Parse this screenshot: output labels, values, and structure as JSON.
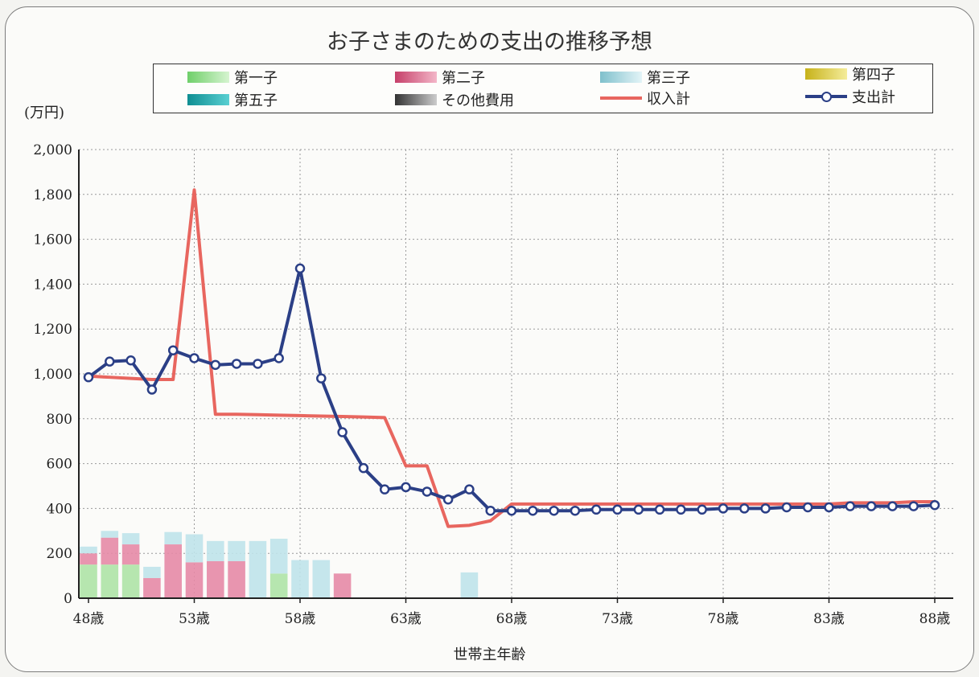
{
  "chart_data": {
    "type": "bar",
    "title": "お子さまのための支出の推移予想",
    "unit_label": "(万円)",
    "xlabel": "世帯主年齢",
    "ylim": [
      0,
      2000
    ],
    "y_ticks": [
      "0",
      "200",
      "400",
      "600",
      "800",
      "1,000",
      "1,200",
      "1,400",
      "1,600",
      "1,800",
      "2,000"
    ],
    "x_ticks": [
      "48歳",
      "53歳",
      "58歳",
      "63歳",
      "68歳",
      "73歳",
      "78歳",
      "83歳",
      "88歳"
    ],
    "ages": [
      48,
      49,
      50,
      51,
      52,
      53,
      54,
      55,
      56,
      57,
      58,
      59,
      60,
      61,
      62,
      63,
      64,
      65,
      66,
      67,
      68,
      69,
      70,
      71,
      72,
      73,
      74,
      75,
      76,
      77,
      78,
      79,
      80,
      81,
      82,
      83,
      84,
      85,
      86,
      87,
      88
    ],
    "legend_position": "top",
    "grid": true,
    "colors": {
      "child1": "#aee3a6",
      "child2": "#e58aa6",
      "child3": "#bfe3ea",
      "child4": "#e6d65a",
      "child5": "#24a7aa",
      "other": "#8a8a8a",
      "income": "#e8665f",
      "expense": "#2b3f86"
    },
    "bar_series": [
      {
        "key": "child1",
        "name": "第一子",
        "values": [
          150,
          150,
          150,
          0,
          0,
          0,
          0,
          0,
          0,
          110,
          0,
          0,
          0,
          0,
          0,
          0,
          0,
          0,
          0,
          0,
          0,
          0,
          0,
          0,
          0,
          0,
          0,
          0,
          0,
          0,
          0,
          0,
          0,
          0,
          0,
          0,
          0,
          0,
          0,
          0,
          0
        ]
      },
      {
        "key": "child2",
        "name": "第二子",
        "values": [
          50,
          120,
          90,
          90,
          240,
          160,
          165,
          165,
          0,
          0,
          0,
          0,
          110,
          0,
          0,
          0,
          0,
          0,
          0,
          0,
          0,
          0,
          0,
          0,
          0,
          0,
          0,
          0,
          0,
          0,
          0,
          0,
          0,
          0,
          0,
          0,
          0,
          0,
          0,
          0,
          0
        ]
      },
      {
        "key": "child3",
        "name": "第三子",
        "values": [
          30,
          30,
          50,
          50,
          55,
          125,
          90,
          90,
          255,
          155,
          170,
          170,
          0,
          0,
          0,
          0,
          0,
          0,
          115,
          0,
          0,
          0,
          0,
          0,
          0,
          0,
          0,
          0,
          0,
          0,
          0,
          0,
          0,
          0,
          0,
          0,
          0,
          0,
          0,
          0,
          0
        ]
      },
      {
        "key": "child4",
        "name": "第四子",
        "values": []
      },
      {
        "key": "child5",
        "name": "第五子",
        "values": []
      },
      {
        "key": "other",
        "name": "その他費用",
        "values": []
      }
    ],
    "line_series": [
      {
        "key": "income",
        "name": "収入計",
        "values": [
          990,
          985,
          980,
          975,
          975,
          1820,
          820,
          820,
          818,
          816,
          814,
          812,
          810,
          808,
          805,
          590,
          590,
          320,
          325,
          345,
          420,
          420,
          420,
          420,
          420,
          420,
          420,
          420,
          420,
          420,
          420,
          420,
          420,
          420,
          420,
          420,
          425,
          425,
          425,
          430,
          430
        ]
      },
      {
        "key": "expense",
        "name": "支出計",
        "values": [
          985,
          1055,
          1060,
          930,
          1105,
          1070,
          1040,
          1045,
          1045,
          1070,
          1470,
          980,
          740,
          580,
          485,
          495,
          475,
          440,
          485,
          390,
          390,
          390,
          390,
          390,
          395,
          395,
          395,
          395,
          395,
          395,
          400,
          400,
          400,
          405,
          405,
          405,
          410,
          410,
          410,
          410,
          415
        ]
      }
    ]
  }
}
